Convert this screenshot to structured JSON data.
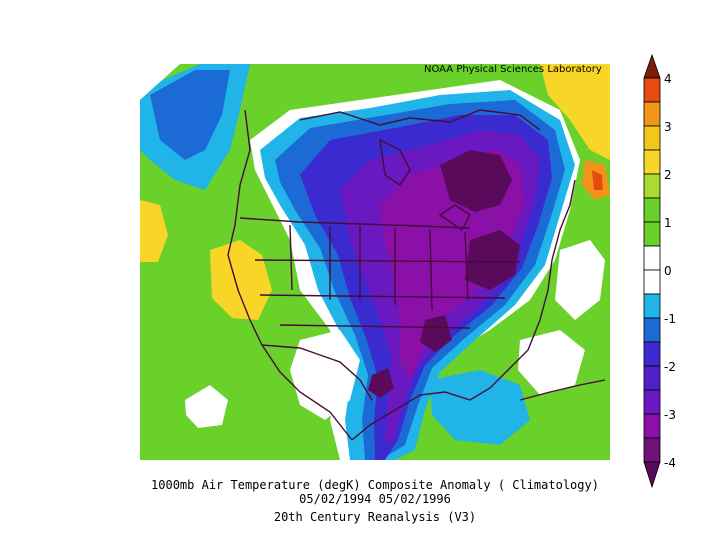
{
  "map": {
    "credit": "NOAA Physical Sciences Laboratory",
    "caption_line1": "1000mb Air Temperature (degK) Composite Anomaly ( Climatology)",
    "caption_line2": "05/02/1994 05/02/1996",
    "caption_line3": "20th Century Reanalysis (V3)"
  },
  "legend": {
    "ticks": [
      "4",
      "3",
      "2",
      "1",
      "0",
      "-1",
      "-2",
      "-3",
      "-4"
    ],
    "colors": [
      "#7a1e0a",
      "#e84a10",
      "#f2941a",
      "#f7d628",
      "#8fd63a",
      "#6ad02a",
      "#ffffff",
      "#ffffff",
      "#20b4e8",
      "#1c6ad6",
      "#3a2ad0",
      "#6a18c0",
      "#8a10a8",
      "#5a0a5a"
    ]
  }
}
